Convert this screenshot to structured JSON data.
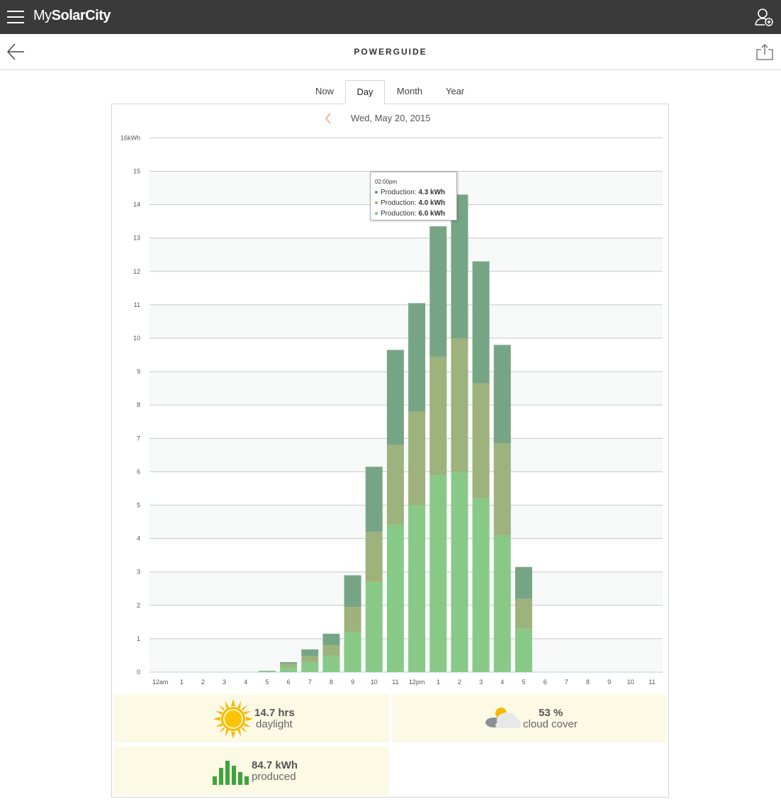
{
  "app": {
    "brand_prefix": "My",
    "brand_name": "SolarCity"
  },
  "header": {
    "title": "POWERGUIDE"
  },
  "tabs": [
    {
      "label": "Now",
      "active": false
    },
    {
      "label": "Day",
      "active": true
    },
    {
      "label": "Month",
      "active": false
    },
    {
      "label": "Year",
      "active": false
    }
  ],
  "date": {
    "label": "Wed, May 20, 2015"
  },
  "tooltip": {
    "time": "02:00pm",
    "rows": [
      {
        "label": "Production:",
        "value": "4.3 kWh",
        "color": "#5a9a6e"
      },
      {
        "label": "Production:",
        "value": "4.0 kWh",
        "color": "#8fb070"
      },
      {
        "label": "Production:",
        "value": "6.0 kWh",
        "color": "#7cc47c"
      }
    ]
  },
  "chart_data": {
    "type": "bar",
    "stacked": true,
    "title": "",
    "ylabel": "",
    "ylim": [
      0,
      16
    ],
    "y_ticks": [
      "0",
      "1",
      "2",
      "3",
      "4",
      "5",
      "6",
      "7",
      "8",
      "9",
      "10",
      "11",
      "12",
      "13",
      "14",
      "15",
      "16kWh"
    ],
    "categories": [
      "12am",
      "1",
      "2",
      "3",
      "4",
      "5",
      "6",
      "7",
      "8",
      "9",
      "10",
      "11",
      "12pm",
      "1",
      "2",
      "3",
      "4",
      "5",
      "6",
      "7",
      "8",
      "9",
      "10",
      "11"
    ],
    "series": [
      {
        "color": "#88c988",
        "values": [
          0,
          0,
          0,
          0,
          0,
          0.02,
          0.15,
          0.3,
          0.5,
          1.2,
          2.7,
          4.4,
          5.0,
          5.9,
          6.0,
          5.2,
          4.1,
          1.3,
          0,
          0,
          0,
          0,
          0,
          0
        ]
      },
      {
        "color": "#9db27c",
        "values": [
          0,
          0,
          0,
          0,
          0,
          0.01,
          0.1,
          0.18,
          0.3,
          0.75,
          1.5,
          2.4,
          2.8,
          3.55,
          4.0,
          3.45,
          2.75,
          0.9,
          0,
          0,
          0,
          0,
          0,
          0
        ]
      },
      {
        "color": "#76a585",
        "values": [
          0,
          0,
          0,
          0,
          0,
          0.01,
          0.05,
          0.2,
          0.35,
          0.95,
          1.95,
          2.85,
          3.25,
          3.9,
          4.3,
          3.65,
          2.95,
          0.95,
          0,
          0,
          0,
          0,
          0,
          0
        ]
      }
    ],
    "grid": true,
    "legend": "none"
  },
  "stats": {
    "daylight": {
      "value": "14.7 hrs",
      "label": "daylight"
    },
    "cloud": {
      "value": "53 %",
      "label": "cloud cover"
    },
    "produced": {
      "value": "84.7 kWh",
      "label": "produced"
    }
  }
}
